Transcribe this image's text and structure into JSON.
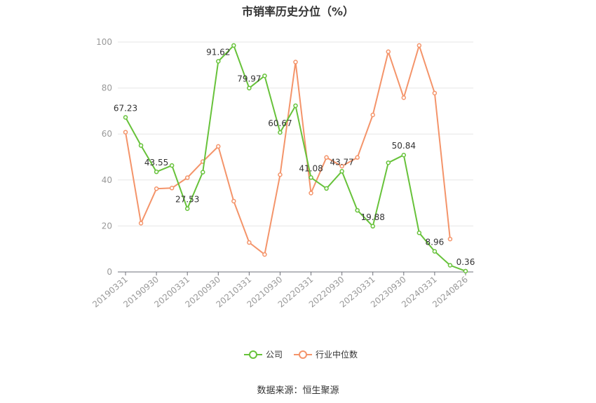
{
  "chart_data": {
    "type": "line",
    "title": "市销率历史分位（%）",
    "xlabel": "",
    "ylabel": "",
    "ylim": [
      0,
      100
    ],
    "yticks": [
      0,
      20,
      40,
      60,
      80,
      100
    ],
    "grid": true,
    "legend_position": "bottom",
    "x": [
      "20190331",
      "20190630",
      "20190930",
      "20191231",
      "20200331",
      "20200630",
      "20200930",
      "20201231",
      "20210331",
      "20210630",
      "20210930",
      "20211231",
      "20220331",
      "20220630",
      "20220930",
      "20221231",
      "20230331",
      "20230630",
      "20230930",
      "20231231",
      "20240331",
      "20240630",
      "20240826"
    ],
    "x_tick_labels": [
      "20190331",
      "20190930",
      "20200331",
      "20200930",
      "20210331",
      "20210930",
      "20220331",
      "20220930",
      "20230331",
      "20230930",
      "20240331",
      "20240826"
    ],
    "series": [
      {
        "name": "公司",
        "color": "#67c23a",
        "values": [
          67.23,
          55.0,
          43.55,
          46.3,
          27.53,
          43.4,
          91.62,
          98.5,
          79.97,
          85.3,
          60.67,
          72.3,
          41.08,
          36.3,
          43.77,
          26.8,
          19.88,
          47.5,
          50.84,
          17.0,
          8.96,
          2.9,
          0.36
        ],
        "labeled_points": [
          {
            "index": 0,
            "text": "67.23"
          },
          {
            "index": 2,
            "text": "43.55"
          },
          {
            "index": 4,
            "text": "27.53"
          },
          {
            "index": 6,
            "text": "91.62"
          },
          {
            "index": 8,
            "text": "79.97"
          },
          {
            "index": 10,
            "text": "60.67"
          },
          {
            "index": 12,
            "text": "41.08"
          },
          {
            "index": 14,
            "text": "43.77"
          },
          {
            "index": 16,
            "text": "19.88"
          },
          {
            "index": 18,
            "text": "50.84"
          },
          {
            "index": 20,
            "text": "8.96"
          },
          {
            "index": 22,
            "text": "0.36"
          }
        ]
      },
      {
        "name": "行业中位数",
        "color": "#f4946a",
        "values": [
          60.8,
          21.2,
          36.2,
          36.5,
          41.0,
          48.0,
          54.6,
          30.8,
          12.8,
          7.6,
          42.3,
          91.3,
          34.3,
          49.8,
          46.0,
          49.8,
          68.3,
          95.8,
          75.8,
          98.5,
          77.8,
          14.3,
          null
        ]
      }
    ],
    "source": "数据来源：恒生聚源"
  }
}
